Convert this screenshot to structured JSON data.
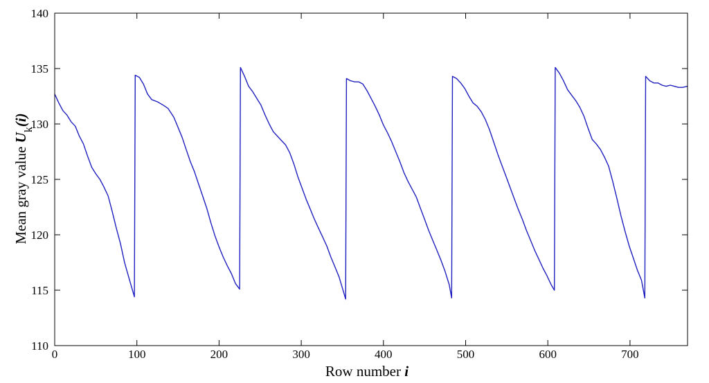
{
  "chart_data": {
    "type": "line",
    "title": "",
    "xlabel": "Row number i",
    "xlabel_parts": {
      "text": "Row number ",
      "var": "i"
    },
    "ylabel": "Mean gray value U_k(i)",
    "ylabel_parts": {
      "text": "Mean gray value ",
      "var": "U",
      "sub": "k",
      "arg": "(i)"
    },
    "xlim": [
      0,
      770
    ],
    "ylim": [
      110,
      140
    ],
    "xticks": [
      0,
      100,
      200,
      300,
      400,
      500,
      600,
      700
    ],
    "yticks": [
      110,
      115,
      120,
      125,
      130,
      135,
      140
    ],
    "xtick_labels": [
      "0",
      "100",
      "200",
      "300",
      "400",
      "500",
      "600",
      "700"
    ],
    "ytick_labels": [
      "110",
      "115",
      "120",
      "125",
      "130",
      "135",
      "140"
    ],
    "grid": false,
    "line_color": "#1f1fbf",
    "series": [
      {
        "points": [
          [
            0,
            132.7
          ],
          [
            5,
            131.9
          ],
          [
            10,
            131.2
          ],
          [
            15,
            130.8
          ],
          [
            20,
            130.2
          ],
          [
            25,
            129.8
          ],
          [
            30,
            128.9
          ],
          [
            35,
            128.2
          ],
          [
            40,
            127.1
          ],
          [
            45,
            126.1
          ],
          [
            50,
            125.5
          ],
          [
            55,
            125.0
          ],
          [
            60,
            124.3
          ],
          [
            65,
            123.5
          ],
          [
            70,
            122.1
          ],
          [
            75,
            120.6
          ],
          [
            80,
            119.2
          ],
          [
            85,
            117.5
          ],
          [
            90,
            116.2
          ],
          [
            95,
            114.9
          ],
          [
            97,
            114.4
          ],
          [
            98,
            134.4
          ],
          [
            103,
            134.2
          ],
          [
            108,
            133.6
          ],
          [
            113,
            132.7
          ],
          [
            118,
            132.2
          ],
          [
            125,
            132.0
          ],
          [
            132,
            131.7
          ],
          [
            138,
            131.4
          ],
          [
            145,
            130.6
          ],
          [
            150,
            129.7
          ],
          [
            155,
            128.8
          ],
          [
            160,
            127.7
          ],
          [
            165,
            126.6
          ],
          [
            170,
            125.7
          ],
          [
            175,
            124.6
          ],
          [
            180,
            123.5
          ],
          [
            185,
            122.4
          ],
          [
            190,
            121.1
          ],
          [
            195,
            119.9
          ],
          [
            200,
            118.9
          ],
          [
            205,
            118.0
          ],
          [
            210,
            117.2
          ],
          [
            215,
            116.5
          ],
          [
            220,
            115.6
          ],
          [
            225,
            115.1
          ],
          [
            226,
            135.1
          ],
          [
            231,
            134.3
          ],
          [
            236,
            133.4
          ],
          [
            241,
            132.9
          ],
          [
            246,
            132.3
          ],
          [
            251,
            131.7
          ],
          [
            256,
            130.8
          ],
          [
            261,
            130.0
          ],
          [
            266,
            129.3
          ],
          [
            271,
            128.9
          ],
          [
            276,
            128.5
          ],
          [
            281,
            128.1
          ],
          [
            286,
            127.4
          ],
          [
            291,
            126.4
          ],
          [
            296,
            125.2
          ],
          [
            301,
            124.2
          ],
          [
            306,
            123.2
          ],
          [
            311,
            122.3
          ],
          [
            316,
            121.4
          ],
          [
            321,
            120.6
          ],
          [
            326,
            119.8
          ],
          [
            331,
            119.0
          ],
          [
            336,
            118.0
          ],
          [
            341,
            117.1
          ],
          [
            346,
            116.2
          ],
          [
            350,
            115.2
          ],
          [
            354,
            114.2
          ],
          [
            355,
            134.1
          ],
          [
            360,
            133.9
          ],
          [
            365,
            133.8
          ],
          [
            370,
            133.8
          ],
          [
            375,
            133.6
          ],
          [
            380,
            133.0
          ],
          [
            385,
            132.3
          ],
          [
            390,
            131.6
          ],
          [
            395,
            130.8
          ],
          [
            400,
            129.9
          ],
          [
            405,
            129.2
          ],
          [
            410,
            128.4
          ],
          [
            415,
            127.5
          ],
          [
            420,
            126.6
          ],
          [
            425,
            125.6
          ],
          [
            430,
            124.8
          ],
          [
            435,
            124.1
          ],
          [
            440,
            123.4
          ],
          [
            445,
            122.4
          ],
          [
            450,
            121.4
          ],
          [
            455,
            120.4
          ],
          [
            460,
            119.5
          ],
          [
            465,
            118.6
          ],
          [
            470,
            117.7
          ],
          [
            475,
            116.7
          ],
          [
            480,
            115.5
          ],
          [
            483,
            114.3
          ],
          [
            484,
            134.3
          ],
          [
            489,
            134.1
          ],
          [
            494,
            133.7
          ],
          [
            499,
            133.2
          ],
          [
            504,
            132.5
          ],
          [
            509,
            131.9
          ],
          [
            514,
            131.6
          ],
          [
            519,
            131.1
          ],
          [
            524,
            130.4
          ],
          [
            529,
            129.5
          ],
          [
            534,
            128.4
          ],
          [
            539,
            127.3
          ],
          [
            544,
            126.3
          ],
          [
            549,
            125.3
          ],
          [
            554,
            124.3
          ],
          [
            559,
            123.3
          ],
          [
            564,
            122.3
          ],
          [
            569,
            121.4
          ],
          [
            574,
            120.4
          ],
          [
            579,
            119.5
          ],
          [
            584,
            118.6
          ],
          [
            589,
            117.8
          ],
          [
            594,
            117.0
          ],
          [
            599,
            116.3
          ],
          [
            604,
            115.5
          ],
          [
            608,
            115.0
          ],
          [
            609,
            135.1
          ],
          [
            614,
            134.6
          ],
          [
            619,
            133.9
          ],
          [
            624,
            133.1
          ],
          [
            629,
            132.6
          ],
          [
            634,
            132.1
          ],
          [
            639,
            131.5
          ],
          [
            644,
            130.7
          ],
          [
            649,
            129.6
          ],
          [
            654,
            128.6
          ],
          [
            659,
            128.2
          ],
          [
            664,
            127.7
          ],
          [
            669,
            127.0
          ],
          [
            674,
            126.2
          ],
          [
            679,
            124.8
          ],
          [
            684,
            123.3
          ],
          [
            689,
            121.7
          ],
          [
            694,
            120.3
          ],
          [
            699,
            119.0
          ],
          [
            704,
            117.9
          ],
          [
            709,
            116.8
          ],
          [
            714,
            115.9
          ],
          [
            718,
            114.3
          ],
          [
            719,
            134.3
          ],
          [
            724,
            133.9
          ],
          [
            729,
            133.7
          ],
          [
            734,
            133.7
          ],
          [
            739,
            133.5
          ],
          [
            744,
            133.4
          ],
          [
            749,
            133.5
          ],
          [
            754,
            133.4
          ],
          [
            759,
            133.3
          ],
          [
            764,
            133.3
          ],
          [
            770,
            133.4
          ]
        ]
      }
    ]
  }
}
